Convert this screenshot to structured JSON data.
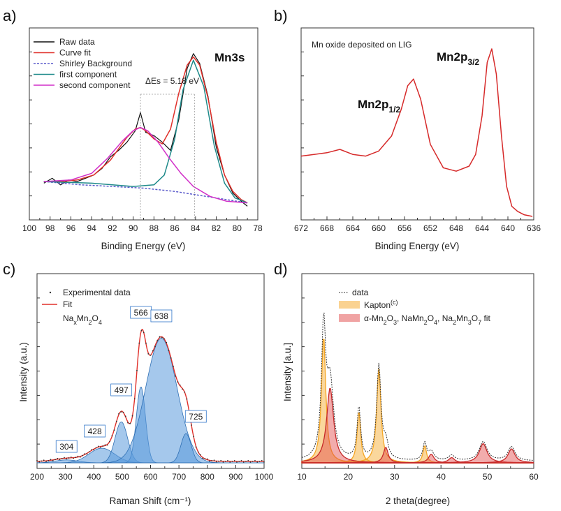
{
  "colors": {
    "raw": "#111111",
    "fit": "#e0302a",
    "shirley": "#5a5acb",
    "first": "#1f8a8a",
    "second": "#d12fc8",
    "xps_b": "#d62a2a",
    "raman_fill": "#5b9bdc",
    "raman_edge": "#2f6fb3",
    "raman_label": "#2e74c8",
    "xrd_kapton": "#f5a623",
    "xrd_fit": "#e24848"
  },
  "chart_data": [
    {
      "panel": "a)",
      "type": "line",
      "annotation_main": "Mn3s",
      "delta_label": "ΔEs = 5.18 eV",
      "xlabel": "Binding Energy (eV)",
      "xlim": [
        100,
        78
      ],
      "xticks": [
        100,
        98,
        96,
        94,
        92,
        90,
        88,
        86,
        84,
        82,
        80,
        78
      ],
      "legend": [
        "Raw data",
        "Curve fit",
        "Shirley Background",
        "first component",
        "second component"
      ],
      "peaks": [
        89.3,
        84.1
      ],
      "series": [
        {
          "name": "Raw data",
          "x": [
            98.6,
            97.8,
            97.0,
            96.2,
            95.4,
            94.6,
            93.8,
            93.0,
            92.2,
            91.4,
            90.6,
            89.8,
            89.3,
            88.8,
            88.0,
            87.2,
            86.4,
            85.6,
            84.8,
            84.2,
            83.6,
            82.8,
            82.0,
            81.2,
            80.4,
            79.6,
            79.0
          ],
          "y": [
            0.13,
            0.16,
            0.12,
            0.15,
            0.14,
            0.16,
            0.18,
            0.22,
            0.29,
            0.33,
            0.38,
            0.45,
            0.56,
            0.44,
            0.42,
            0.38,
            0.33,
            0.52,
            0.83,
            0.92,
            0.86,
            0.66,
            0.35,
            0.18,
            0.07,
            0.02,
            -0.01
          ]
        },
        {
          "name": "Curve fit",
          "x": [
            98.6,
            97.0,
            95.4,
            93.8,
            92.2,
            91.4,
            90.6,
            89.8,
            89.3,
            88.8,
            88.0,
            87.2,
            86.4,
            85.6,
            84.8,
            84.2,
            83.6,
            82.8,
            82.0,
            81.2,
            80.4,
            79.6,
            79.0
          ],
          "y": [
            0.14,
            0.14,
            0.15,
            0.18,
            0.27,
            0.34,
            0.41,
            0.46,
            0.47,
            0.45,
            0.4,
            0.37,
            0.46,
            0.68,
            0.85,
            0.9,
            0.85,
            0.65,
            0.38,
            0.18,
            0.08,
            0.03,
            0.01
          ]
        },
        {
          "name": "Shirley Background",
          "x": [
            98.6,
            95.0,
            92.0,
            89.0,
            86.0,
            84.0,
            82.0,
            80.0,
            79.0
          ],
          "y": [
            0.14,
            0.12,
            0.11,
            0.1,
            0.08,
            0.06,
            0.04,
            0.02,
            0.01
          ]
        },
        {
          "name": "first component",
          "x": [
            98.6,
            94.0,
            90.0,
            88.0,
            87.0,
            86.0,
            85.2,
            84.2,
            83.2,
            82.2,
            81.2,
            80.2,
            79.0
          ],
          "y": [
            0.14,
            0.13,
            0.11,
            0.12,
            0.18,
            0.4,
            0.7,
            0.88,
            0.72,
            0.36,
            0.13,
            0.04,
            0.01
          ]
        },
        {
          "name": "second component",
          "x": [
            98.6,
            96.0,
            94.0,
            92.5,
            91.0,
            90.0,
            89.3,
            88.6,
            87.6,
            86.5,
            85.4,
            84.2,
            82.6,
            81.0,
            79.0
          ],
          "y": [
            0.14,
            0.15,
            0.19,
            0.28,
            0.39,
            0.45,
            0.47,
            0.45,
            0.38,
            0.28,
            0.19,
            0.11,
            0.05,
            0.02,
            0.01
          ]
        }
      ]
    },
    {
      "panel": "b)",
      "type": "line",
      "title": "Mn oxide deposited on LIG",
      "peak_labels": [
        {
          "main": "Mn2p",
          "sub": "1/2",
          "x": 654
        },
        {
          "main": "Mn2p",
          "sub": "3/2",
          "x": 642.5
        }
      ],
      "xlabel": "Binding Energy (eV)",
      "xlim": [
        672,
        636
      ],
      "xticks": [
        672,
        668,
        664,
        660,
        656,
        652,
        648,
        644,
        640,
        636
      ],
      "series": [
        {
          "x": [
            672,
            670,
            668,
            666,
            664,
            662,
            660,
            658,
            656.5,
            655.5,
            654.6,
            653.5,
            652,
            650,
            648,
            646,
            645,
            644,
            643.2,
            642.5,
            641.8,
            641,
            640.2,
            639.4,
            638.5,
            637.5,
            636.2
          ],
          "y": [
            0.36,
            0.37,
            0.38,
            0.4,
            0.37,
            0.36,
            0.39,
            0.48,
            0.64,
            0.78,
            0.82,
            0.7,
            0.43,
            0.29,
            0.27,
            0.3,
            0.37,
            0.6,
            0.92,
            1.0,
            0.85,
            0.48,
            0.18,
            0.06,
            0.03,
            0.01,
            0.0
          ]
        }
      ]
    },
    {
      "panel": "c)",
      "type": "area",
      "xlabel": "Raman Shift (cm⁻¹)",
      "ylabel": "Intensity (a.u.)",
      "xlim": [
        200,
        1000
      ],
      "xticks": [
        200,
        300,
        400,
        500,
        600,
        700,
        800,
        900,
        1000
      ],
      "legend": [
        "Experimental data",
        "Fit",
        "NaxMn2O4"
      ],
      "peak_labels": [
        304,
        428,
        497,
        566,
        638,
        725
      ],
      "components": [
        {
          "center": 304,
          "amp": 0.02,
          "width": 40
        },
        {
          "center": 428,
          "amp": 0.1,
          "width": 45
        },
        {
          "center": 497,
          "amp": 0.28,
          "width": 22
        },
        {
          "center": 566,
          "amp": 0.52,
          "width": 16
        },
        {
          "center": 638,
          "amp": 0.85,
          "width": 55
        },
        {
          "center": 725,
          "amp": 0.2,
          "width": 18
        }
      ]
    },
    {
      "panel": "d)",
      "type": "area",
      "xlabel": "2 theta(degree)",
      "ylabel": "Intensity [a.u.]",
      "xlim": [
        10,
        60
      ],
      "xticks": [
        10,
        20,
        30,
        40,
        50,
        60
      ],
      "legend": [
        "data",
        "Kapton",
        "α-Mn2O3, NaMn2O4, Na2Mn3O7 fit"
      ],
      "kapton_peaks": [
        {
          "center": 14.7,
          "amp": 0.73,
          "width": 0.55
        },
        {
          "center": 22.3,
          "amp": 0.3,
          "width": 0.45
        },
        {
          "center": 26.6,
          "amp": 0.54,
          "width": 0.55
        },
        {
          "center": 36.5,
          "amp": 0.1,
          "width": 0.45
        }
      ],
      "fit_peaks": [
        {
          "center": 16.1,
          "amp": 0.43,
          "width": 0.9
        },
        {
          "center": 28.1,
          "amp": 0.09,
          "width": 0.6
        },
        {
          "center": 37.9,
          "amp": 0.05,
          "width": 0.7
        },
        {
          "center": 42.3,
          "amp": 0.03,
          "width": 0.8
        },
        {
          "center": 49.1,
          "amp": 0.11,
          "width": 1.0
        },
        {
          "center": 55.2,
          "amp": 0.08,
          "width": 0.9
        }
      ]
    }
  ],
  "labels": {
    "a": "a)",
    "b": "b)",
    "c": "c)",
    "d": "d)",
    "legend_a": [
      "Raw data",
      "Curve fit",
      "Shirley Background",
      "first component",
      "second component"
    ],
    "legend_c_1": "Experimental data",
    "legend_c_2": "Fit",
    "legend_c_3_base": "Na",
    "legend_d_1": "data",
    "legend_d_2": "Kapton",
    "legend_d_2_sup": "(c)"
  }
}
